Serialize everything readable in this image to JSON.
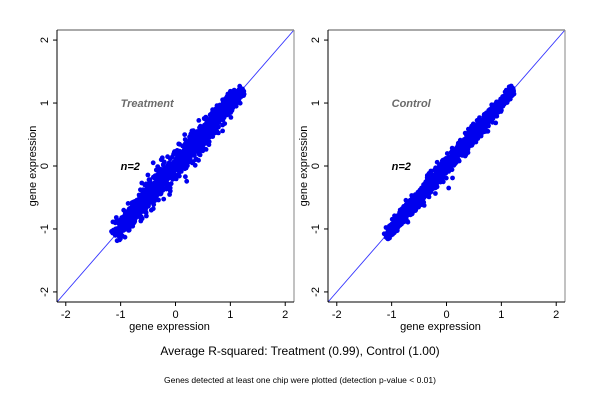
{
  "chart_data": [
    {
      "type": "scatter",
      "panel": "left",
      "title": "Treatment",
      "annotation": "n=2",
      "xlabel": "gene expression",
      "ylabel": "gene expression",
      "xlim": [
        -2.16,
        2.16
      ],
      "ylim": [
        -2.16,
        2.16
      ],
      "xticks": [
        -2,
        -1,
        0,
        1,
        2
      ],
      "yticks": [
        -2,
        -1,
        0,
        1,
        2
      ],
      "xtick_labels": [
        "-2",
        "-1",
        "0",
        "1",
        "2"
      ],
      "ytick_labels": [
        "-2",
        "-1",
        "0",
        "1",
        "2"
      ],
      "grid": false,
      "reference_line": {
        "slope": 1,
        "intercept": 0,
        "color": "#3333ff"
      },
      "point_color": "#0000ee",
      "cloud": {
        "x_range": [
          -1.1,
          1.2
        ],
        "spread": 0.085,
        "count": 1400
      },
      "outliers": [
        {
          "x": -0.26,
          "y": 0.1
        },
        {
          "x": 0.42,
          "y": 0.09
        },
        {
          "x": 0.07,
          "y": -0.16
        },
        {
          "x": 0.18,
          "y": -0.17
        }
      ]
    },
    {
      "type": "scatter",
      "panel": "right",
      "title": "Control",
      "annotation": "n=2",
      "xlabel": "gene expression",
      "ylabel": "gene expression",
      "xlim": [
        -2.16,
        2.16
      ],
      "ylim": [
        -2.16,
        2.16
      ],
      "xticks": [
        -2,
        -1,
        0,
        1,
        2
      ],
      "yticks": [
        -2,
        -1,
        0,
        1,
        2
      ],
      "xtick_labels": [
        "-2",
        "-1",
        "0",
        "1",
        "2"
      ],
      "ytick_labels": [
        "-2",
        "-1",
        "0",
        "1",
        "2"
      ],
      "grid": false,
      "reference_line": {
        "slope": 1,
        "intercept": 0,
        "color": "#3333ff"
      },
      "point_color": "#0000ee",
      "cloud": {
        "x_range": [
          -1.1,
          1.2
        ],
        "spread": 0.055,
        "count": 1400
      },
      "outliers": [
        {
          "x": -0.17,
          "y": 0.06
        },
        {
          "x": 0.11,
          "y": -0.19
        },
        {
          "x": 0.04,
          "y": -0.35
        }
      ]
    }
  ],
  "captions": {
    "main": "Average R-squared: Treatment (0.99), Control (1.00)",
    "sub": "Genes detected at least one chip were plotted (detection p-value < 0.01)"
  },
  "r_squared": {
    "Treatment": 0.99,
    "Control": 1.0
  }
}
